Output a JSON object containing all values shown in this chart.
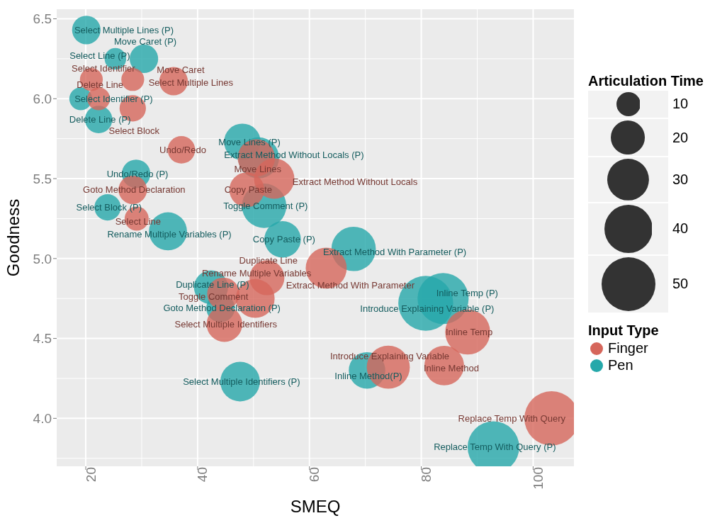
{
  "chart_data": {
    "type": "bubble",
    "xlabel": "SMEQ",
    "ylabel": "Goodness",
    "legend_title": "Input Type",
    "legend": "right",
    "grid": true,
    "xlim": [
      14.8,
      107.3
    ],
    "xticks": [
      20,
      40,
      60,
      80,
      100
    ],
    "ylim": [
      3.7,
      6.56
    ],
    "yticks": [
      {
        "value": 4,
        "label": "4.0"
      },
      {
        "value": 4.5,
        "label": "4.5"
      },
      {
        "value": 5,
        "label": "5.0"
      },
      {
        "value": 5.5,
        "label": "5.5"
      },
      {
        "value": 6,
        "label": "6.0"
      },
      {
        "value": 6.5,
        "label": "6.5"
      }
    ],
    "size_legend": [
      10,
      20,
      30,
      40,
      50
    ],
    "series": [
      {
        "name": "Finger",
        "color": "#d6665b",
        "x": [
          21.0,
          28.4,
          35.7,
          22.3,
          28.4,
          37.1,
          28.4,
          29.1,
          50.5,
          53.7,
          48.8,
          63.0,
          52.4,
          44.6,
          50.3,
          44.8,
          88.3,
          84.1,
          74.1,
          103.3
        ],
        "values": [
          6.12,
          6.12,
          6.11,
          6.0,
          5.94,
          5.68,
          5.43,
          5.25,
          5.63,
          5.5,
          5.43,
          4.94,
          4.88,
          4.78,
          4.75,
          4.59,
          4.54,
          4.33,
          4.32,
          4.0
        ],
        "sizes": [
          9,
          9,
          14,
          9,
          12,
          13,
          14,
          10,
          24,
          28,
          21,
          29,
          21,
          18,
          26,
          22,
          35,
          27,
          32,
          51
        ]
      },
      {
        "name": "Pen",
        "color": "#25a8aa",
        "x": [
          20.1,
          25.3,
          30.4,
          19.1,
          22.3,
          48.0,
          50.9,
          29.0,
          23.9,
          51.9,
          34.7,
          55.2,
          67.9,
          42.4,
          44.1,
          47.6,
          70.3,
          80.8,
          83.9,
          92.9
        ],
        "values": [
          6.43,
          6.25,
          6.25,
          6.0,
          5.87,
          5.73,
          5.63,
          5.53,
          5.32,
          5.33,
          5.17,
          5.12,
          5.06,
          4.82,
          4.69,
          4.23,
          4.3,
          4.72,
          4.75,
          3.82
        ],
        "sizes": [
          14,
          8,
          14,
          9,
          13,
          23,
          29,
          14,
          12,
          34,
          25,
          23,
          34,
          20,
          14,
          27,
          23,
          52,
          45,
          46
        ]
      }
    ],
    "annotations": [
      "Articulation Time",
      {
        "text": "Select Identifier",
        "x": 21.0,
        "y": 6.12
      },
      {
        "text": "Select Multiple Lines",
        "x": 28.4,
        "y": 6.12
      },
      {
        "text": "Move Caret",
        "x": 35.7,
        "y": 6.11
      },
      {
        "text": "Delete Line",
        "x": 22.3,
        "y": 6.0
      },
      {
        "text": "Select Block",
        "x": 28.4,
        "y": 5.94
      },
      {
        "text": "Undo/Redo",
        "x": 37.1,
        "y": 5.68
      },
      {
        "text": "Goto Method Declaration",
        "x": 28.4,
        "y": 5.43
      },
      {
        "text": "Select Line",
        "x": 29.1,
        "y": 5.25
      },
      {
        "text": "Move Lines",
        "x": 50.5,
        "y": 5.63
      },
      {
        "text": "Extract Method Without Locals",
        "x": 53.7,
        "y": 5.5
      },
      {
        "text": "Copy Paste",
        "x": 48.8,
        "y": 5.43
      },
      {
        "text": "Extract Method With Parameter",
        "x": 63.0,
        "y": 4.94
      },
      {
        "text": "Duplicate Line",
        "x": 52.4,
        "y": 4.88
      },
      {
        "text": "Toggle Comment",
        "x": 44.6,
        "y": 4.78
      },
      {
        "text": "Rename Multiple Variables",
        "x": 50.3,
        "y": 4.75
      },
      {
        "text": "Select Multiple Identifiers",
        "x": 44.8,
        "y": 4.59
      },
      {
        "text": "Inline Temp",
        "x": 88.3,
        "y": 4.54
      },
      {
        "text": "Inline Method",
        "x": 84.1,
        "y": 4.33
      },
      {
        "text": "Introduce Explaining Variable",
        "x": 74.1,
        "y": 4.32
      },
      {
        "text": "Replace Temp With Query",
        "x": 103.3,
        "y": 4.0
      },
      {
        "text": "Select Multiple Lines (P)",
        "x": 20.1,
        "y": 6.43
      },
      {
        "text": "Select Line (P)",
        "x": 25.3,
        "y": 6.25
      },
      {
        "text": "Move Caret (P)",
        "x": 30.4,
        "y": 6.25
      },
      {
        "text": "Select Identifier (P)",
        "x": 19.1,
        "y": 6.0
      },
      {
        "text": "Delete Line (P)",
        "x": 22.3,
        "y": 5.87
      },
      {
        "text": "Move Lines (P)",
        "x": 48.0,
        "y": 5.73
      },
      {
        "text": "Extract Method Without Locals (P)",
        "x": 50.9,
        "y": 5.63
      },
      {
        "text": "Undo/Redo (P)",
        "x": 29.0,
        "y": 5.53
      },
      {
        "text": "Select Block (P)",
        "x": 23.9,
        "y": 5.32
      },
      {
        "text": "Toggle Comment (P)",
        "x": 51.9,
        "y": 5.33
      },
      {
        "text": "Rename Multiple Variables (P)",
        "x": 34.7,
        "y": 5.17
      },
      {
        "text": "Copy Paste (P)",
        "x": 55.2,
        "y": 5.12
      },
      {
        "text": "Extract Method With Parameter (P)",
        "x": 67.9,
        "y": 5.06
      },
      {
        "text": "Duplicate Line (P)",
        "x": 42.4,
        "y": 4.82
      },
      {
        "text": "Goto Method Declaration (P)",
        "x": 44.1,
        "y": 4.69
      },
      {
        "text": "Select Multiple Identifiers (P)",
        "x": 47.6,
        "y": 4.23
      },
      {
        "text": "Inline Method(P)",
        "x": 70.3,
        "y": 4.3
      },
      {
        "text": "Introduce Explaining Variable (P)",
        "x": 80.8,
        "y": 4.72
      },
      {
        "text": "Inline Temp (P)",
        "x": 83.9,
        "y": 4.75
      },
      {
        "text": "Replace Temp With Query (P)",
        "x": 92.9,
        "y": 3.82
      }
    ]
  }
}
